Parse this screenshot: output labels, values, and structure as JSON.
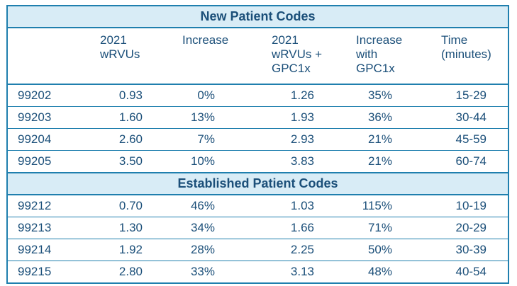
{
  "sections": {
    "new_title": "New Patient Codes",
    "established_title": "Established Patient Codes"
  },
  "headers": [
    "",
    "2021\nwRVUs",
    "Increase",
    "2021\nwRVUs +\nGPC1x",
    "Increase\nwith\nGPC1x",
    "Time\n(minutes)"
  ],
  "new_rows": [
    [
      "99202",
      "0.93",
      "0%",
      "1.26",
      "35%",
      "15-29"
    ],
    [
      "99203",
      "1.60",
      "13%",
      "1.93",
      "36%",
      "30-44"
    ],
    [
      "99204",
      "2.60",
      "7%",
      "2.93",
      "21%",
      "45-59"
    ],
    [
      "99205",
      "3.50",
      "10%",
      "3.83",
      "21%",
      "60-74"
    ]
  ],
  "established_rows": [
    [
      "99212",
      "0.70",
      "46%",
      "1.03",
      "115%",
      "10-19"
    ],
    [
      "99213",
      "1.30",
      "34%",
      "1.66",
      "71%",
      "20-29"
    ],
    [
      "99214",
      "1.92",
      "28%",
      "2.25",
      "50%",
      "30-39"
    ],
    [
      "99215",
      "2.80",
      "33%",
      "3.13",
      "48%",
      "40-54"
    ]
  ]
}
